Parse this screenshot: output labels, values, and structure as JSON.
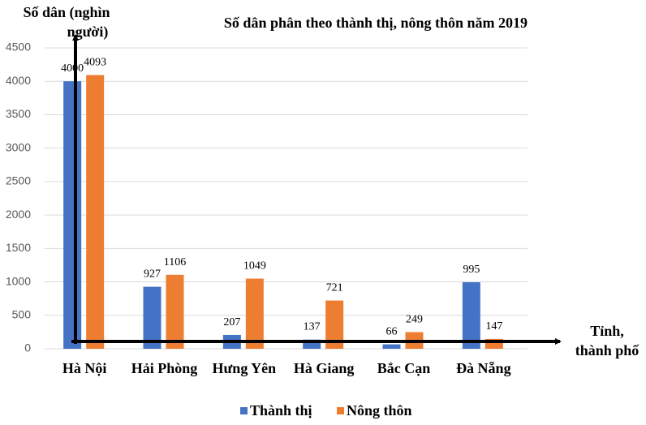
{
  "chart_data": {
    "type": "bar",
    "title": "Số dân phân theo thành thị, nông thôn năm 2019",
    "y_label": [
      "Số dân (nghìn",
      "người)"
    ],
    "x_label": [
      "Tỉnh,",
      "thành phố"
    ],
    "categories": [
      "Hà Nội",
      "Hải Phòng",
      "Hưng Yên",
      "Hà Giang",
      "Bắc Cạn",
      "Đà Nẵng"
    ],
    "series": [
      {
        "name": "Thành thị",
        "color": "#4472c4",
        "values": [
          4000,
          927,
          207,
          137,
          66,
          995
        ]
      },
      {
        "name": "Nông thôn",
        "color": "#ed7d31",
        "values": [
          4093,
          1106,
          1049,
          721,
          249,
          147
        ]
      }
    ],
    "ylim": [
      0,
      4500
    ],
    "yticks": [
      0,
      500,
      1000,
      1500,
      2000,
      2500,
      3000,
      3500,
      4000,
      4500
    ],
    "grid": true,
    "legend": "bottom"
  }
}
